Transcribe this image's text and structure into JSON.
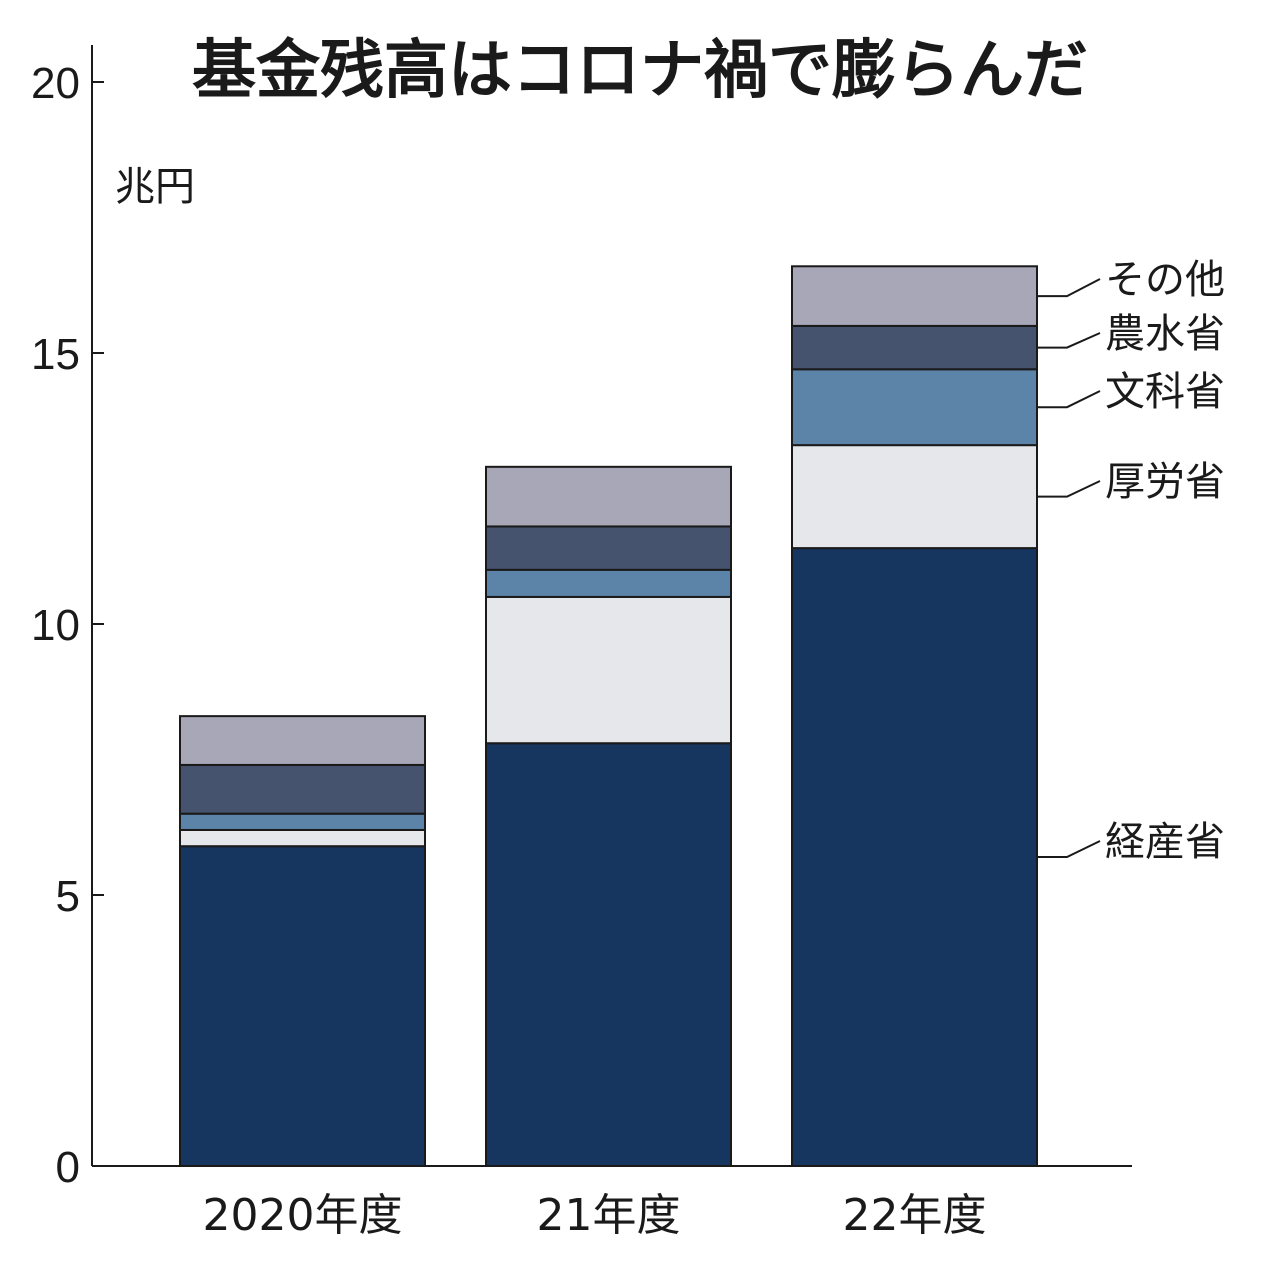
{
  "chart_data": {
    "type": "bar",
    "stacked": true,
    "title": "基金残高はコロナ禍で膨らんだ",
    "unit_label": "兆円",
    "xlabel": "",
    "ylabel": "",
    "ylim": [
      0,
      20
    ],
    "yticks": [
      0,
      5,
      10,
      15,
      20
    ],
    "grid": false,
    "legend_placement": "right",
    "categories": [
      "2020年度",
      "21年度",
      "22年度"
    ],
    "series": [
      {
        "name": "経産省",
        "color": "#163660",
        "values": [
          5.9,
          7.8,
          11.4
        ]
      },
      {
        "name": "厚労省",
        "color": "#e6e7eb",
        "values": [
          0.3,
          2.7,
          1.9
        ]
      },
      {
        "name": "文科省",
        "color": "#5b84a8",
        "values": [
          0.3,
          0.5,
          1.4
        ]
      },
      {
        "name": "農水省",
        "color": "#45536f",
        "values": [
          0.9,
          0.8,
          0.8
        ]
      },
      {
        "name": "その他",
        "color": "#a7a7b8",
        "values": [
          0.9,
          1.1,
          1.1
        ]
      }
    ]
  }
}
